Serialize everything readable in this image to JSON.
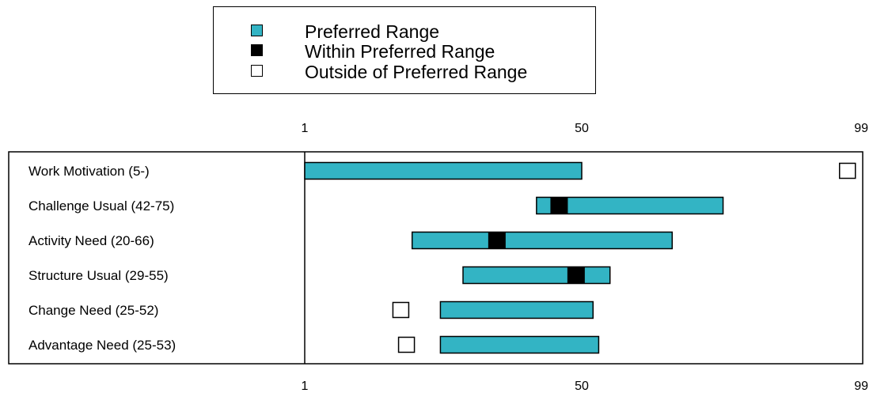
{
  "legend": [
    {
      "label": "Preferred Range",
      "color": "#33b4c4"
    },
    {
      "label": "Within Preferred Range",
      "color": "#000000"
    },
    {
      "label": "Outside of Preferred Range",
      "color": "#ffffff"
    }
  ],
  "chart_data": {
    "type": "bar",
    "xlim": [
      1,
      99
    ],
    "ticks": [
      "1",
      "50",
      "99"
    ],
    "colors": {
      "range": "#33b4c4",
      "within": "#000000",
      "outside": "#ffffff"
    },
    "rows": [
      {
        "label": "Work Motivation (5-)",
        "range": [
          1,
          50
        ],
        "score": 97,
        "status": "outside"
      },
      {
        "label": "Challenge Usual (42-75)",
        "range": [
          42,
          75
        ],
        "score": 46,
        "status": "within"
      },
      {
        "label": "Activity Need (20-66)",
        "range": [
          20,
          66
        ],
        "score": 35,
        "status": "within"
      },
      {
        "label": "Structure Usual (29-55)",
        "range": [
          29,
          55
        ],
        "score": 49,
        "status": "within"
      },
      {
        "label": "Change Need (25-52)",
        "range": [
          25,
          52
        ],
        "score": 18,
        "status": "outside"
      },
      {
        "label": "Advantage Need (25-53)",
        "range": [
          25,
          53
        ],
        "score": 19,
        "status": "outside"
      }
    ]
  }
}
